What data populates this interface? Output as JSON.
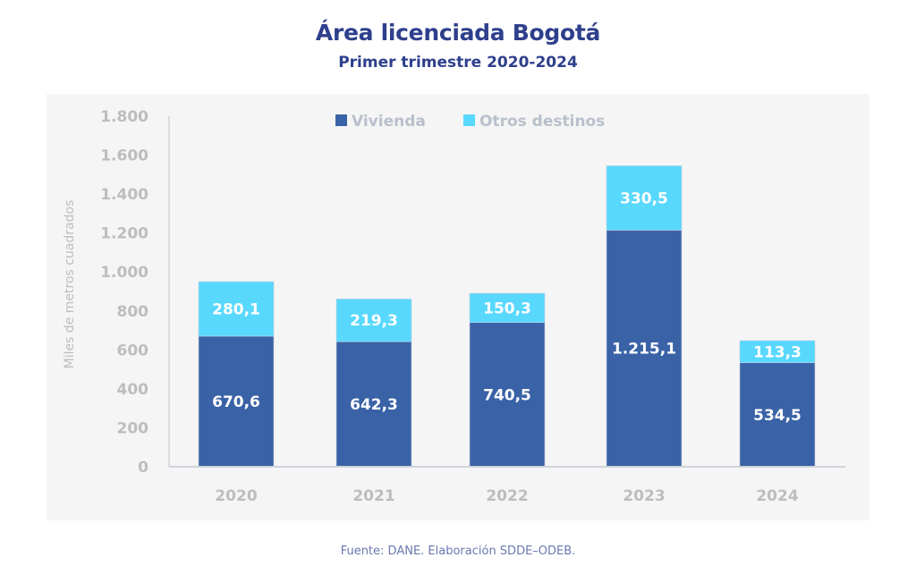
{
  "header": {
    "title": "Área licenciada Bogotá",
    "subtitle": "Primer trimestre 2020-2024"
  },
  "footer": {
    "source": "Fuente: DANE. Elaboración SDDE–ODEB."
  },
  "colors": {
    "vivienda": "#3a62a7",
    "otros": "#59d8fe",
    "axis": "#cfd3da",
    "panel": "#f5f5f5",
    "title": "#2e3f8c"
  },
  "chart_data": {
    "type": "bar",
    "stacked": true,
    "title": "Área licenciada Bogotá",
    "subtitle": "Primer trimestre 2020-2024",
    "xlabel": "",
    "ylabel": "Miles de metros cuadrados",
    "categories": [
      "2020",
      "2021",
      "2022",
      "2023",
      "2024"
    ],
    "ylim": [
      0,
      1800
    ],
    "yticks": [
      0,
      200,
      400,
      600,
      800,
      1000,
      1200,
      1400,
      1600,
      1800
    ],
    "ytick_labels": [
      "0",
      "200",
      "400",
      "600",
      "800",
      "1.000",
      "1.200",
      "1.400",
      "1.600",
      "1.800"
    ],
    "grid": false,
    "legend_position": "top-center",
    "series": [
      {
        "name": "Vivienda",
        "color": "#3a62a7",
        "values": [
          670.6,
          642.3,
          740.5,
          1215.1,
          534.5
        ],
        "labels": [
          "670,6",
          "642,3",
          "740,5",
          "1.215,1",
          "534,5"
        ]
      },
      {
        "name": "Otros destinos",
        "color": "#59d8fe",
        "values": [
          280.1,
          219.3,
          150.3,
          330.5,
          113.3
        ],
        "labels": [
          "280,1",
          "219,3",
          "150,3",
          "330,5",
          "113,3"
        ]
      }
    ]
  }
}
